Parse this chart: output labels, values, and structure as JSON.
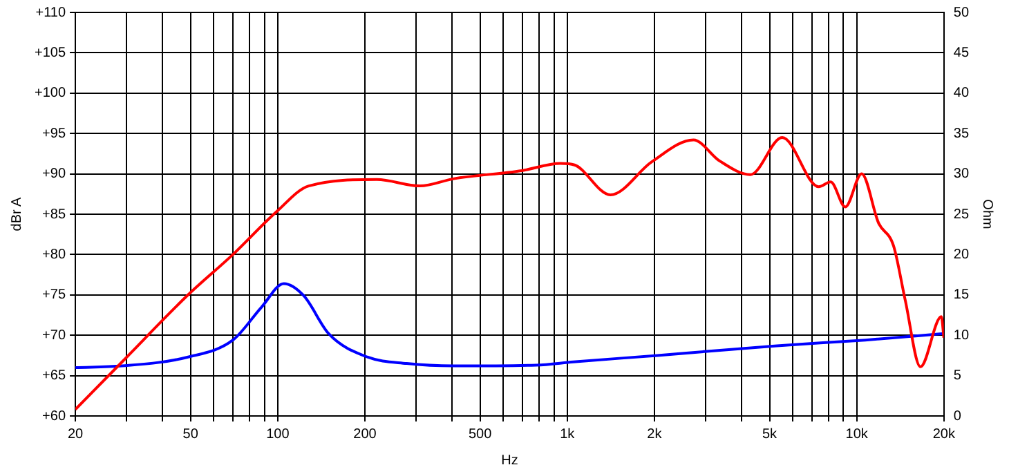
{
  "chart_data": {
    "type": "line",
    "xlabel": "Hz",
    "ylabel": "dBr A",
    "y2label": "Ohm",
    "log": "x",
    "grid": true,
    "legend": false,
    "marker": "none",
    "line_style": "solid",
    "xlim": [
      20,
      20000
    ],
    "xticks": [
      20,
      {
        "value": 30,
        "label": null
      },
      {
        "value": 40,
        "label": null
      },
      50,
      {
        "value": 60,
        "label": null
      },
      {
        "value": 70,
        "label": null
      },
      {
        "value": 80,
        "label": null
      },
      {
        "value": 90,
        "label": null
      },
      100,
      200,
      {
        "value": 300,
        "label": null
      },
      {
        "value": 400,
        "label": null
      },
      500,
      {
        "value": 600,
        "label": null
      },
      {
        "value": 700,
        "label": null
      },
      {
        "value": 800,
        "label": null
      },
      {
        "value": 900,
        "label": null
      },
      {
        "value": 1000,
        "label": "1k"
      },
      {
        "value": 2000,
        "label": "2k"
      },
      {
        "value": 3000,
        "label": null
      },
      {
        "value": 4000,
        "label": null
      },
      {
        "value": 5000,
        "label": "5k"
      },
      {
        "value": 6000,
        "label": null
      },
      {
        "value": 7000,
        "label": null
      },
      {
        "value": 8000,
        "label": null
      },
      {
        "value": 9000,
        "label": null
      },
      {
        "value": 10000,
        "label": "10k"
      },
      {
        "value": 20000,
        "label": "20k"
      }
    ],
    "ylim": [
      60,
      110
    ],
    "yticks": [
      {
        "value": 60,
        "label": "+60"
      },
      {
        "value": 65,
        "label": "+65"
      },
      {
        "value": 70,
        "label": "+70"
      },
      {
        "value": 75,
        "label": "+75"
      },
      {
        "value": 80,
        "label": "+80"
      },
      {
        "value": 85,
        "label": "+85"
      },
      {
        "value": 90,
        "label": "+90"
      },
      {
        "value": 95,
        "label": "+95"
      },
      {
        "value": 100,
        "label": "+100"
      },
      {
        "value": 105,
        "label": "+105"
      },
      {
        "value": 110,
        "label": "+110"
      }
    ],
    "y2lim": [
      0,
      50
    ],
    "y2ticks": [
      0,
      5,
      10,
      15,
      20,
      25,
      30,
      35,
      40,
      45,
      50
    ],
    "series": [
      {
        "color": "#ff0000",
        "x": [
          20,
          29,
          49,
          70,
          99,
          128,
          220,
          310,
          406,
          697,
          946,
          1060,
          1410,
          1960,
          2730,
          3360,
          4290,
          5530,
          7390,
          8130,
          9130,
          10400,
          11900,
          13400,
          14700,
          16600,
          19600,
          20000
        ],
        "values": [
          60.8,
          66.7,
          75,
          80,
          85.3,
          88.5,
          89.3,
          88.5,
          89.4,
          90.4,
          91.3,
          91.1,
          87.4,
          91.5,
          94.2,
          91.6,
          89.9,
          94.5,
          88.4,
          89,
          85.9,
          90,
          83.9,
          81.1,
          74.4,
          66.1,
          72.3,
          69.7
        ]
      },
      {
        "color": "#0000ff",
        "axis": "y2",
        "x": [
          20,
          29,
          49,
          70,
          88,
          105,
          123,
          150,
          204,
          279,
          406,
          780,
          1050,
          2050,
          5300,
          10700,
          20000
        ],
        "values": [
          6,
          6.2,
          7.3,
          9.4,
          13.5,
          16.4,
          14.9,
          10.2,
          7.3,
          6.5,
          6.2,
          6.3,
          6.7,
          7.5,
          8.7,
          9.4,
          10.2
        ]
      }
    ]
  }
}
